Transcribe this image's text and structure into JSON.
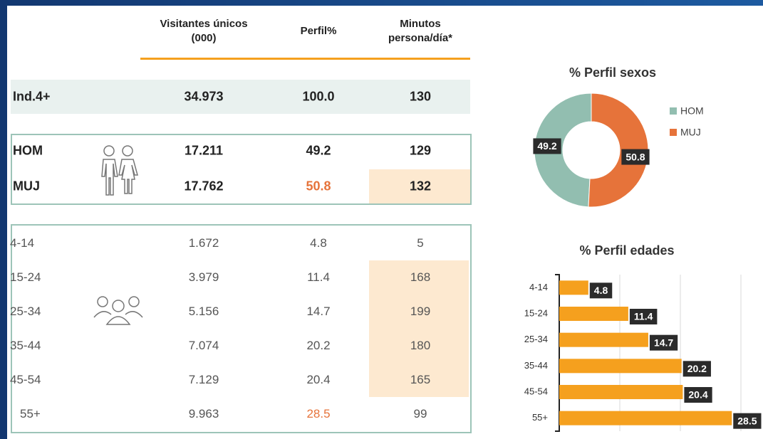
{
  "table": {
    "header": [
      "Visitantes únicos (000)",
      "Perfil%",
      "Minutos persona/día*"
    ],
    "rows": [
      [
        "Ind.4+",
        "34.973",
        "100.0",
        "130"
      ],
      [
        "HOM",
        "17.211",
        "49.2",
        "129"
      ],
      [
        "MUJ",
        "17.762",
        "50.8",
        "132"
      ],
      [
        "4-14",
        "1.672",
        "4.8",
        "5"
      ],
      [
        "15-24",
        "3.979",
        "11.4",
        "168"
      ],
      [
        "25-34",
        "5.156",
        "14.7",
        "199"
      ],
      [
        "35-44",
        "7.074",
        "20.2",
        "180"
      ],
      [
        "45-54",
        "7.129",
        "20.4",
        "165"
      ],
      [
        "55+",
        "9.963",
        "28.5",
        "99"
      ]
    ]
  },
  "chart_data": [
    {
      "type": "pie",
      "title": "% Perfil sexos",
      "categories": [
        "HOM",
        "MUJ"
      ],
      "values": [
        49.2,
        50.8
      ],
      "colors": [
        "#92beb0",
        "#e6733a"
      ],
      "donut": true
    },
    {
      "type": "bar",
      "orientation": "horizontal",
      "title": "% Perfil edades",
      "categories": [
        "4-14",
        "15-24",
        "25-34",
        "35-44",
        "45-54",
        "55+"
      ],
      "values": [
        4.8,
        11.4,
        14.7,
        20.2,
        20.4,
        28.5
      ],
      "color": "#f5a01e",
      "xlim": [
        0,
        30
      ],
      "xticks": [
        0,
        10,
        20,
        30
      ],
      "grid": true
    }
  ]
}
